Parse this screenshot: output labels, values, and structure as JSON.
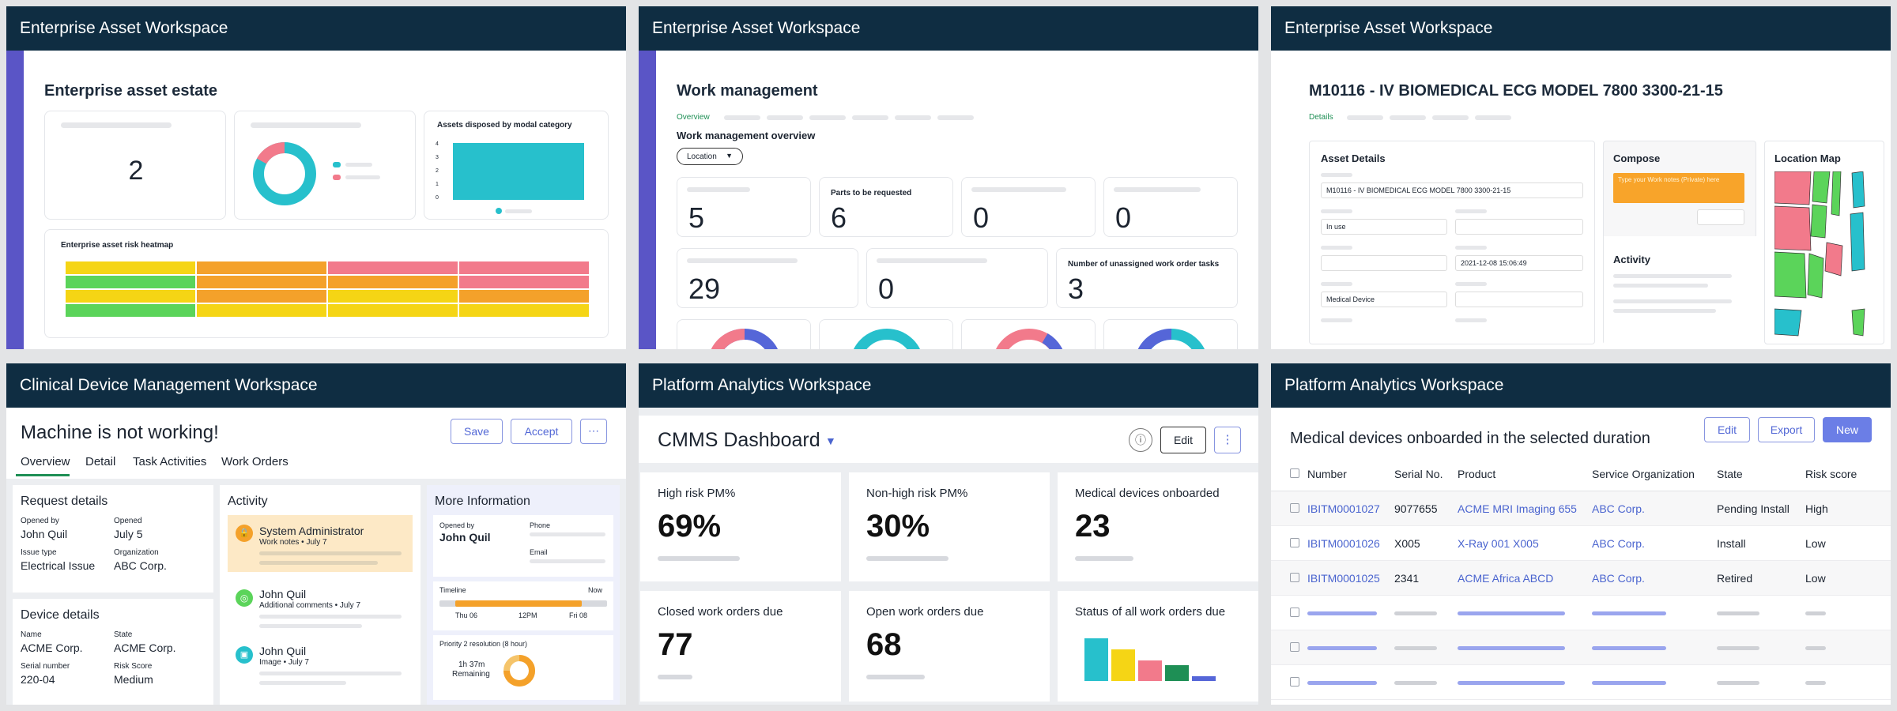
{
  "panel1": {
    "header": "Enterprise Asset Workspace",
    "title": "Enterprise asset estate",
    "count": "2",
    "bar_title": "Assets disposed by modal category",
    "bar_ticks": [
      "4",
      "3",
      "2",
      "1",
      "0"
    ],
    "heatmap_title": "Enterprise asset risk heatmap"
  },
  "panel2": {
    "header": "Enterprise Asset Workspace",
    "title": "Work management",
    "tab": "Overview",
    "subtitle": "Work management overview",
    "dropdown": "Location",
    "kpis": [
      {
        "label": "",
        "value": "5"
      },
      {
        "label": "Parts to be requested",
        "value": "6"
      },
      {
        "label": "",
        "value": "0"
      },
      {
        "label": "",
        "value": "0"
      },
      {
        "label": "",
        "value": "29"
      },
      {
        "label": "",
        "value": "0"
      },
      {
        "label": "Number of unassigned work order tasks",
        "value": "3"
      }
    ]
  },
  "panel3": {
    "header": "Enterprise Asset Workspace",
    "title": "M10116 - IV BIOMEDICAL ECG MODEL 7800 3300-21-15",
    "tab": "Details",
    "asset_details": "Asset Details",
    "field_name": "M10116 - IV BIOMEDICAL ECG MODEL 7800 3300-21-15",
    "field_status": "In use",
    "field_date": "2021-12-08 15:06:49",
    "field_type": "Medical Device",
    "compose": "Compose",
    "compose_placeholder": "Type your Work notes (Private) here",
    "activity": "Activity",
    "location_map": "Location Map"
  },
  "panel4": {
    "header": "Clinical Device Management Workspace",
    "title": "Machine is not working!",
    "save": "Save",
    "accept": "Accept",
    "more": "⋯",
    "tabs": [
      "Overview",
      "Detail",
      "Task Activities",
      "Work Orders"
    ],
    "request": {
      "title": "Request details",
      "opened_by_label": "Opened by",
      "opened_by": "John Quil",
      "opened_label": "Opened",
      "opened": "July 5",
      "issue_label": "Issue type",
      "issue": "Electrical Issue",
      "org_label": "Organization",
      "org": "ABC Corp."
    },
    "device": {
      "title": "Device details",
      "name_label": "Name",
      "name": "ACME Corp.",
      "state_label": "State",
      "state": "ACME Corp.",
      "serial_label": "Serial number",
      "serial": "220-04",
      "risk_label": "Risk Score",
      "risk": "Medium"
    },
    "activity": {
      "title": "Activity",
      "items": [
        {
          "name": "System Administrator",
          "meta": "Work notes • July 7"
        },
        {
          "name": "John Quil",
          "meta": "Additional comments • July 7"
        },
        {
          "name": "John Quil",
          "meta": "Image • July 7"
        }
      ]
    },
    "more_info": {
      "title": "More Information",
      "opened_by_label": "Opened by",
      "opened_by": "John Quil",
      "phone_label": "Phone",
      "email_label": "Email",
      "timeline_label": "Timeline",
      "now_label": "Now",
      "timeline_ticks": [
        "Thu 06",
        "12PM",
        "Fri 08"
      ],
      "priority_label": "Priority 2 resolution (8 hour)",
      "remaining_time": "1h 37m",
      "remaining_label": "Remaining"
    }
  },
  "panel5": {
    "header": "Platform Analytics Workspace",
    "title": "CMMS Dashboard",
    "edit": "Edit",
    "cards": [
      {
        "label": "High risk PM%",
        "value": "69%"
      },
      {
        "label": "Non-high risk PM%",
        "value": "30%"
      },
      {
        "label": "Medical devices onboarded",
        "value": "23"
      },
      {
        "label": "Closed work orders due",
        "value": "77"
      },
      {
        "label": "Open work orders due",
        "value": "68"
      },
      {
        "label": "Status of all work orders due",
        "value": ""
      }
    ],
    "status_chart_colors": [
      "#27c0cc",
      "#f5d515",
      "#f27a8b",
      "#1e8f55",
      "#5566d8"
    ]
  },
  "panel6": {
    "header": "Platform Analytics Workspace",
    "title": "Medical devices onboarded in the selected duration",
    "edit": "Edit",
    "export": "Export",
    "new": "New",
    "columns": [
      "Number",
      "Serial No.",
      "Product",
      "Service Organization",
      "State",
      "Risk score"
    ],
    "rows": [
      [
        "IBITM0001027",
        "9077655",
        "ACME MRI Imaging 655",
        "ABC Corp.",
        "Pending Install",
        "High"
      ],
      [
        "IBITM0001026",
        "X005",
        "X-Ray 001 X005",
        "ABC Corp.",
        "Install",
        "Low"
      ],
      [
        "IBITM0001025",
        "2341",
        "ACME Africa ABCD",
        "ABC Corp.",
        "Retired",
        "Low"
      ]
    ]
  }
}
